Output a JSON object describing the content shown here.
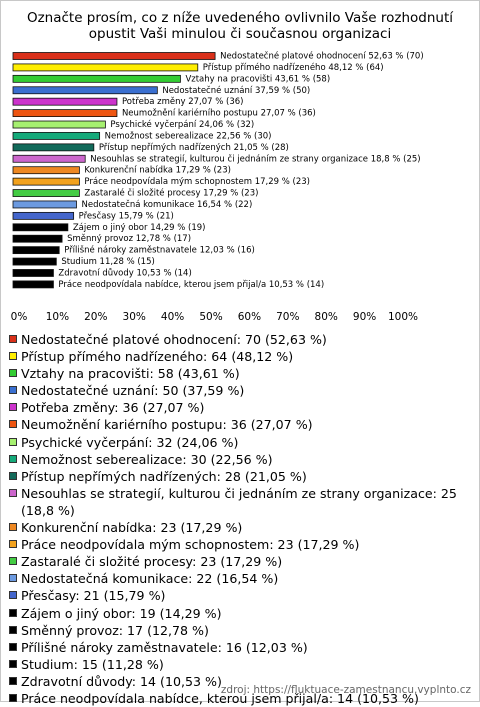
{
  "chart_data": {
    "type": "bar",
    "orientation": "horizontal",
    "title": [
      "Označte prosím, co z níže uvedeného ovlivnilo Vaše rozhodnutí",
      "opustit Vaši minulou či současnou organizaci"
    ],
    "values": [
      52.63,
      48.12,
      43.61,
      37.59,
      27.07,
      27.07,
      24.06,
      22.56,
      21.05,
      18.8,
      17.29,
      17.29,
      17.29,
      16.54,
      15.79,
      14.29,
      12.78,
      12.03,
      11.28,
      10.53,
      10.53
    ],
    "value_labels": [
      "Nedostatečné platové ohodnocení 52,63 % (70)",
      "Přístup přímého nadřízeného 48,12 % (64)",
      "Vztahy na pracovišti 43,61 % (58)",
      "Nedostatečné uznání 37,59 % (50)",
      "Potřeba změny 27,07 % (36)",
      "Neumožnění kariérního postupu 27,07 % (36)",
      "Psychické vyčerpání 24,06 % (32)",
      "Nemožnost seberealizace 22,56 % (30)",
      "Přístup nepřímých nadřízených 21,05 % (28)",
      "Nesouhlas se strategií, kulturou či jednáním ze strany organizace 18,8 % (25)",
      "Konkurenční nabídka 17,29 % (23)",
      "Práce neodpovídala mým schopnostem 17,29 % (23)",
      "Zastaralé či složité procesy 17,29 % (23)",
      "Nedostatečná komunikace 16,54 % (22)",
      "Přesčasy 15,79 % (21)",
      "Zájem o jiný obor 14,29 % (19)",
      "Směnný provoz 12,78 % (17)",
      "Přílišné nároky zaměstnavatele 12,03 % (16)",
      "Studium 11,28 % (15)",
      "Zdravotní důvody 10,53 % (14)",
      "Práce neodpovídala nabídce, kterou jsem přijal/a 10,53 % (14)"
    ],
    "legend": [
      "Nedostatečné platové ohodnocení: 70 (52,63 %)",
      "Přístup přímého nadřízeného: 64 (48,12 %)",
      "Vztahy na pracovišti: 58 (43,61 %)",
      "Nedostatečné uznání: 50 (37,59 %)",
      "Potřeba změny: 36 (27,07 %)",
      "Neumožnění kariérního postupu: 36 (27,07 %)",
      "Psychické vyčerpání: 32 (24,06 %)",
      "Nemožnost seberealizace: 30 (22,56 %)",
      "Přístup nepřímých nadřízených: 28 (21,05 %)",
      "Nesouhlas se strategií, kulturou či jednáním ze strany organizace: 25 (18,8 %)",
      "Konkurenční nabídka: 23 (17,29 %)",
      "Práce neodpovídala mým schopnostem: 23 (17,29 %)",
      "Zastaralé či složité procesy: 23 (17,29 %)",
      "Nedostatečná komunikace: 22 (16,54 %)",
      "Přesčasy: 21 (15,79 %)",
      "Zájem o jiný obor: 19 (14,29 %)",
      "Směnný provoz: 17 (12,78 %)",
      "Přílišné nároky zaměstnavatele: 16 (12,03 %)",
      "Studium: 15 (11,28 %)",
      "Zdravotní důvody: 14 (10,53 %)",
      "Práce neodpovídala nabídce, kterou jsem přijal/a: 14 (10,53 %)"
    ],
    "colors": [
      "#d9301a",
      "#ffee00",
      "#33cc33",
      "#3a6fd0",
      "#cc33cc",
      "#ee5511",
      "#a6f070",
      "#15aa7a",
      "#126a5a",
      "#cc66cc",
      "#ee8822",
      "#f2a21e",
      "#44cc44",
      "#6c9ae0",
      "#4466cc",
      "#000000",
      "#000000",
      "#000000",
      "#000000",
      "#000000",
      "#000000"
    ],
    "xlim": [
      0,
      100
    ],
    "xticks": [
      {
        "value": 0,
        "label": "0%"
      },
      {
        "value": 10,
        "label": "10%"
      },
      {
        "value": 20,
        "label": "20%"
      },
      {
        "value": 30,
        "label": "30%"
      },
      {
        "value": 40,
        "label": "40%"
      },
      {
        "value": 50,
        "label": "50%"
      },
      {
        "value": 60,
        "label": "60%"
      },
      {
        "value": 70,
        "label": "70%"
      },
      {
        "value": 80,
        "label": "80%"
      },
      {
        "value": 90,
        "label": "90%"
      },
      {
        "value": 100,
        "label": "100%"
      }
    ],
    "source": "zdroj: https://fluktuace-zamestnancu.vyplnto.cz"
  }
}
